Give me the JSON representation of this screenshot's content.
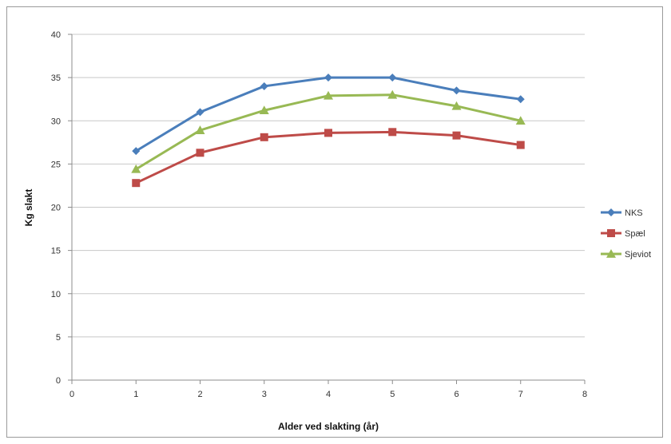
{
  "chart_data": {
    "type": "line",
    "title": "",
    "xlabel": "Alder ved slakting (år)",
    "ylabel": "Kg slakt",
    "xlim": [
      0,
      8
    ],
    "ylim": [
      0,
      40
    ],
    "xticks": [
      0,
      1,
      2,
      3,
      4,
      5,
      6,
      7,
      8
    ],
    "yticks": [
      0,
      5,
      10,
      15,
      20,
      25,
      30,
      35,
      40
    ],
    "grid": "horizontal",
    "legend_position": "right",
    "x": [
      1,
      2,
      3,
      4,
      5,
      6,
      7
    ],
    "series": [
      {
        "name": "NKS",
        "color": "#4a7ebb",
        "marker": "diamond",
        "values": [
          26.5,
          31.0,
          34.0,
          35.0,
          35.0,
          33.5,
          32.5
        ]
      },
      {
        "name": "Spæl",
        "color": "#be4b48",
        "marker": "square",
        "values": [
          22.8,
          26.3,
          28.1,
          28.6,
          28.7,
          28.3,
          27.2
        ]
      },
      {
        "name": "Sjeviot",
        "color": "#98b954",
        "marker": "triangle",
        "values": [
          24.4,
          28.9,
          31.2,
          32.9,
          33.0,
          31.7,
          30.0
        ]
      }
    ]
  }
}
